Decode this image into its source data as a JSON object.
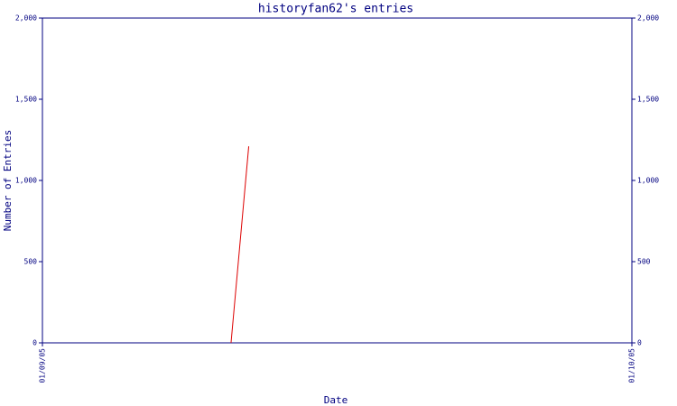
{
  "chart_data": {
    "type": "line",
    "title": "historyfan62's entries",
    "x_label": "Date",
    "y_label": "Number of Entries",
    "x": [
      9.6,
      10.5
    ],
    "series": [
      {
        "name": "historyfan62",
        "color": "#dd0000",
        "values": [
          0,
          1210
        ]
      }
    ],
    "xlim": [
      0,
      30
    ],
    "xticks": [
      {
        "value": 0,
        "label": "01/09/05"
      },
      {
        "value": 30,
        "label": "01/10/05"
      }
    ],
    "ylim": [
      0,
      2000
    ],
    "yticks": [
      0,
      500,
      {
        "value": 1000,
        "label": "1,000"
      },
      {
        "value": 1500,
        "label": "1,500"
      },
      {
        "value": 2000,
        "label": "2,000"
      }
    ],
    "axis_color": "#000080"
  }
}
